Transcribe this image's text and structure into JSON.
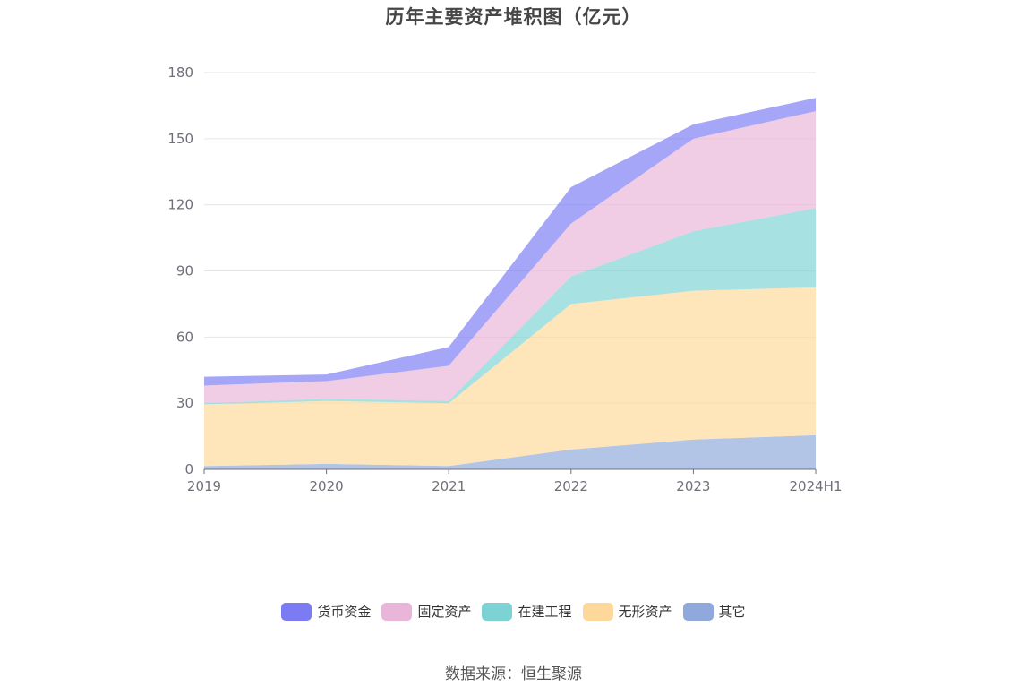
{
  "title": "历年主要资产堆积图（亿元）",
  "source": "数据来源：恒生聚源",
  "chart_data": {
    "type": "area",
    "stacked": true,
    "title": "历年主要资产堆积图（亿元）",
    "x": [
      "2019",
      "2020",
      "2021",
      "2022",
      "2023",
      "2024H1"
    ],
    "y_ticks": [
      "0",
      "30",
      "60",
      "90",
      "120",
      "150",
      "180"
    ],
    "ylim": [
      0,
      180
    ],
    "grid": true,
    "legend_position": "bottom",
    "series": [
      {
        "name": "其它",
        "color": "#8fa9dc",
        "values": [
          1.5,
          2.5,
          1.5,
          9,
          13.5,
          15.5
        ]
      },
      {
        "name": "无形资产",
        "color": "#fdd89a",
        "values": [
          28,
          28.5,
          28.5,
          66,
          67.5,
          67
        ]
      },
      {
        "name": "在建工程",
        "color": "#7dd3d3",
        "values": [
          0.5,
          1,
          1,
          12.5,
          27,
          36
        ]
      },
      {
        "name": "固定资产",
        "color": "#e9b6d9",
        "values": [
          8,
          8,
          16,
          24,
          42,
          44
        ]
      },
      {
        "name": "货币资金",
        "color": "#7b7cf3",
        "values": [
          4,
          3,
          8.5,
          16.5,
          6.5,
          6
        ]
      }
    ]
  }
}
